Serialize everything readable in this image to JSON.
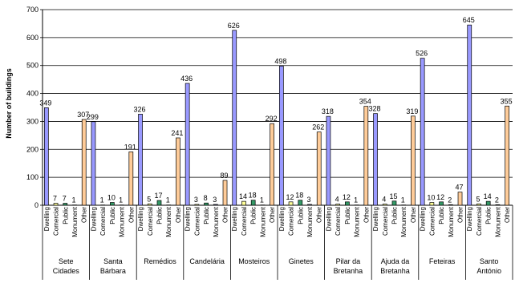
{
  "chart_data": {
    "type": "bar",
    "title": "",
    "xlabel": "",
    "ylabel": "Number of buildings",
    "ylim": [
      0,
      700
    ],
    "yticks": [
      0,
      100,
      200,
      300,
      400,
      500,
      600,
      700
    ],
    "grid": true,
    "legend": "none",
    "categories": [
      "Dwelling",
      "Comercial",
      "Public",
      "Monument",
      "Other"
    ],
    "colors": {
      "Dwelling": "#9999ff",
      "Comercial": "#ffff99",
      "Public": "#339966",
      "Monument": "#666699",
      "Other": "#ffcc99"
    },
    "groups": [
      {
        "name": [
          "Sete",
          "Cidades"
        ],
        "values": [
          349,
          7,
          7,
          1,
          307
        ]
      },
      {
        "name": [
          "Santa",
          "Bárbara"
        ],
        "values": [
          299,
          1,
          10,
          1,
          191
        ]
      },
      {
        "name": [
          "Remédios"
        ],
        "values": [
          326,
          5,
          17,
          1,
          241
        ]
      },
      {
        "name": [
          "Candelária"
        ],
        "values": [
          436,
          3,
          8,
          3,
          89
        ]
      },
      {
        "name": [
          "Mosteiros"
        ],
        "values": [
          626,
          14,
          18,
          1,
          292
        ]
      },
      {
        "name": [
          "Ginetes"
        ],
        "values": [
          498,
          12,
          18,
          3,
          262
        ]
      },
      {
        "name": [
          "Pilar da",
          "Bretanha"
        ],
        "values": [
          318,
          4,
          12,
          1,
          354
        ]
      },
      {
        "name": [
          "Ajuda da",
          "Bretanha"
        ],
        "values": [
          328,
          4,
          15,
          1,
          319
        ]
      },
      {
        "name": [
          "Feteiras"
        ],
        "values": [
          526,
          10,
          12,
          2,
          47
        ]
      },
      {
        "name": [
          "Santo",
          "António"
        ],
        "values": [
          645,
          5,
          14,
          2,
          355
        ]
      }
    ]
  }
}
